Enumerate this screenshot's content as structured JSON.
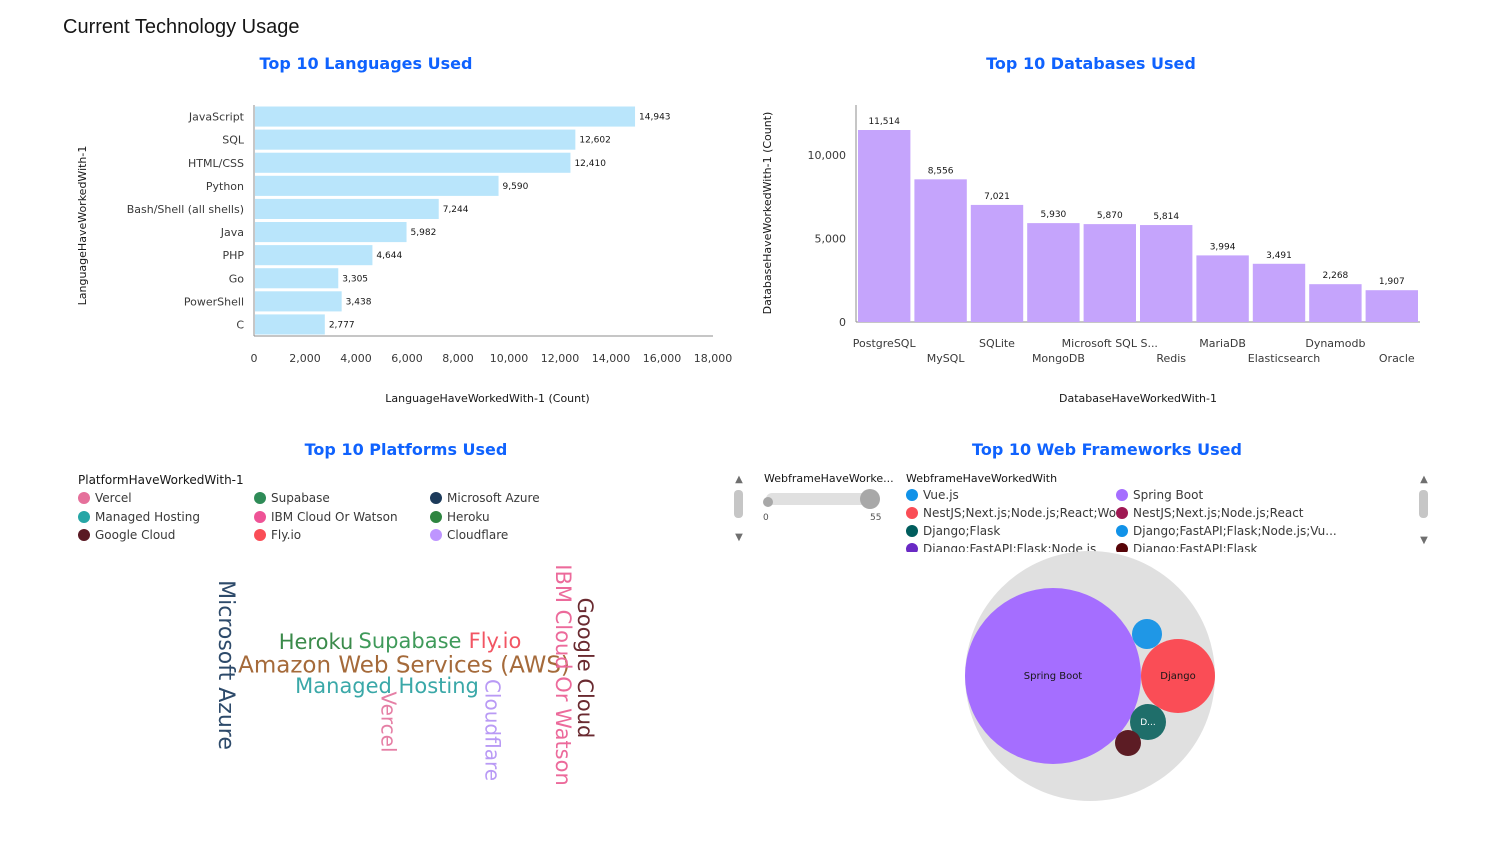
{
  "page": {
    "title": "Current Technology Usage"
  },
  "languages_panel": {
    "title": "Top 10 Languages Used",
    "bar_color": "#b9e5fb",
    "chart_data": {
      "type": "bar",
      "orientation": "horizontal",
      "categories": [
        "JavaScript",
        "SQL",
        "HTML/CSS",
        "Python",
        "Bash/Shell (all shells)",
        "Java",
        "PHP",
        "Go",
        "PowerShell",
        "C"
      ],
      "values": [
        14943,
        12602,
        12410,
        9590,
        7244,
        5982,
        4644,
        3305,
        3438,
        2777
      ],
      "value_labels": [
        "14,943",
        "12,602",
        "12,410",
        "9,590",
        "7,244",
        "5,982",
        "4,644",
        "3,305",
        "3,438",
        "2,777"
      ],
      "xlabel": "LanguageHaveWorkedWith-1 (Count)",
      "ylabel": "LanguageHaveWorkedWith-1",
      "xlim": [
        0,
        18000
      ],
      "xticks": [
        0,
        2000,
        4000,
        6000,
        8000,
        10000,
        12000,
        14000,
        16000,
        18000
      ],
      "xtick_labels": [
        "0",
        "2,000",
        "4,000",
        "6,000",
        "8,000",
        "10,000",
        "12,000",
        "14,000",
        "16,000",
        "18,000"
      ]
    }
  },
  "databases_panel": {
    "title": "Top 10 Databases Used",
    "bar_color": "#c5a4fc",
    "chart_data": {
      "type": "bar",
      "categories": [
        "PostgreSQL",
        "MySQL",
        "SQLite",
        "MongoDB",
        "Microsoft SQL S...",
        "Redis",
        "MariaDB",
        "Elasticsearch",
        "Dynamodb",
        "Oracle"
      ],
      "values": [
        11514,
        8556,
        7021,
        5930,
        5870,
        5814,
        3994,
        3491,
        2268,
        1907
      ],
      "value_labels": [
        "11,514",
        "8,556",
        "7,021",
        "5,930",
        "5,870",
        "5,814",
        "3,994",
        "3,491",
        "2,268",
        "1,907"
      ],
      "xlabel": "DatabaseHaveWorkedWith-1",
      "ylabel": "DatabaseHaveWorkedWith-1 (Count)",
      "ylim": [
        0,
        11514
      ],
      "yticks": [
        0,
        5000,
        10000
      ],
      "ytick_labels": [
        "0",
        "5,000",
        "10,000"
      ]
    }
  },
  "platforms_panel": {
    "title": "Top 10 Platforms Used",
    "legend_title": "PlatformHaveWorkedWith-1",
    "legend": [
      {
        "label": "Vercel",
        "color": "#e5709b"
      },
      {
        "label": "Supabase",
        "color": "#2e8b57"
      },
      {
        "label": "Microsoft Azure",
        "color": "#1c3a5a"
      },
      {
        "label": "Managed Hosting",
        "color": "#26a6a6"
      },
      {
        "label": "IBM Cloud Or Watson",
        "color": "#ee5396"
      },
      {
        "label": "Heroku",
        "color": "#2e8540"
      },
      {
        "label": "Google Cloud",
        "color": "#5a1a24"
      },
      {
        "label": "Fly.io",
        "color": "#fa4d56"
      },
      {
        "label": "Cloudflare",
        "color": "#be95ff"
      }
    ],
    "chart_data": {
      "type": "wordcloud",
      "words": [
        {
          "text": "Amazon Web Services (AWS)",
          "color": "#a56a3a"
        },
        {
          "text": "Heroku",
          "color": "#3a8a4a"
        },
        {
          "text": "Supabase",
          "color": "#3f9a5a"
        },
        {
          "text": "Fly.io",
          "color": "#f25563"
        },
        {
          "text": "Managed Hosting",
          "color": "#3aa8a8"
        },
        {
          "text": "Microsoft Azure",
          "color": "#2d4a6a"
        },
        {
          "text": "Vercel",
          "color": "#e57fa5"
        },
        {
          "text": "Cloudflare",
          "color": "#b99af5"
        },
        {
          "text": "IBM Cloud Or Watson",
          "color": "#ec6a9b"
        },
        {
          "text": "Google Cloud",
          "color": "#6a2a30"
        }
      ]
    }
  },
  "frameworks_panel": {
    "title": "Top 10 Web Frameworks Used",
    "slider": {
      "title": "WebframeHaveWorke...",
      "min_label": "0",
      "max_label": "55"
    },
    "legend_title": "WebframeHaveWorkedWith",
    "legend": [
      {
        "label": "Vue.js",
        "color": "#1192e8"
      },
      {
        "label": "Spring Boot",
        "color": "#a56eff"
      },
      {
        "label": "NestJS;Next.js;Node.js;React;Wo...",
        "color": "#fa4d56"
      },
      {
        "label": "NestJS;Next.js;Node.js;React",
        "color": "#9f1853"
      },
      {
        "label": "Django;Flask",
        "color": "#005d5d"
      },
      {
        "label": "Django;FastAPI;Flask;Node.js;Vu...",
        "color": "#1192e8"
      },
      {
        "label": "Django;FastAPI;Flask;Node.js",
        "color": "#6929c4"
      },
      {
        "label": "Django;FastAPI;Flask",
        "color": "#570408"
      }
    ],
    "chart_data": {
      "type": "bubble",
      "bubbles": [
        {
          "label": "Spring Boot",
          "color": "#a56eff"
        },
        {
          "label": "Django",
          "color": "#fa4d56"
        },
        {
          "label": "D...",
          "color": "#1f6e6a"
        },
        {
          "label": "",
          "color": "#1f97e6"
        },
        {
          "label": "",
          "color": "#5c1c24"
        }
      ],
      "container_color": "#e0e0e0"
    }
  }
}
